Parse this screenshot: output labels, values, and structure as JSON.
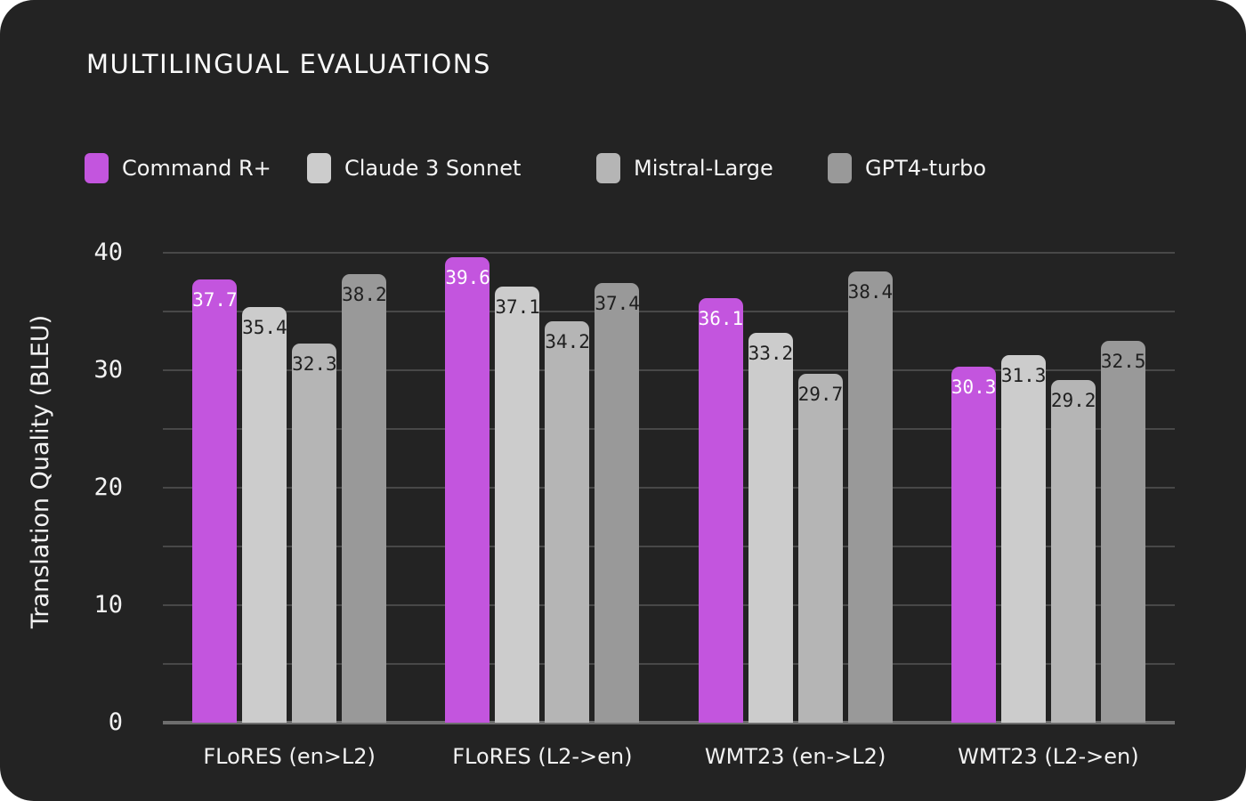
{
  "title": "MULTILINGUAL EVALUATIONS",
  "colors": {
    "card_background": "#232323",
    "gridline": "#484848",
    "axis_line": "#6e6e6e",
    "text": "#f2f2f2"
  },
  "chart_data": {
    "type": "bar",
    "title": "MULTILINGUAL EVALUATIONS",
    "categories": [
      "FLoRES (en>L2)",
      "FLoRES (L2->en)",
      "WMT23 (en->L2)",
      "WMT23 (L2->en)"
    ],
    "series": [
      {
        "name": "Command R+",
        "color": "#c355de",
        "label_color": "#ffffff",
        "values": [
          37.7,
          39.6,
          36.1,
          30.3
        ]
      },
      {
        "name": "Claude 3 Sonnet",
        "color": "#cccccc",
        "label_color": "#1f1f1f",
        "values": [
          35.4,
          37.1,
          33.2,
          31.3
        ]
      },
      {
        "name": "Mistral-Large",
        "color": "#b5b5b5",
        "label_color": "#1f1f1f",
        "values": [
          32.3,
          34.2,
          29.7,
          29.2
        ]
      },
      {
        "name": "GPT4-turbo",
        "color": "#999999",
        "label_color": "#1f1f1f",
        "values": [
          38.2,
          37.4,
          38.4,
          32.5
        ]
      }
    ],
    "xlabel": "",
    "ylabel": "Translation Quality (BLEU)",
    "ylim": [
      0,
      42
    ],
    "ytick_labels": [
      0,
      10,
      20,
      30,
      40
    ],
    "gridline_step": 5,
    "grid": true,
    "legend_position": "top-left",
    "bar_value_labels": "inside-top"
  }
}
